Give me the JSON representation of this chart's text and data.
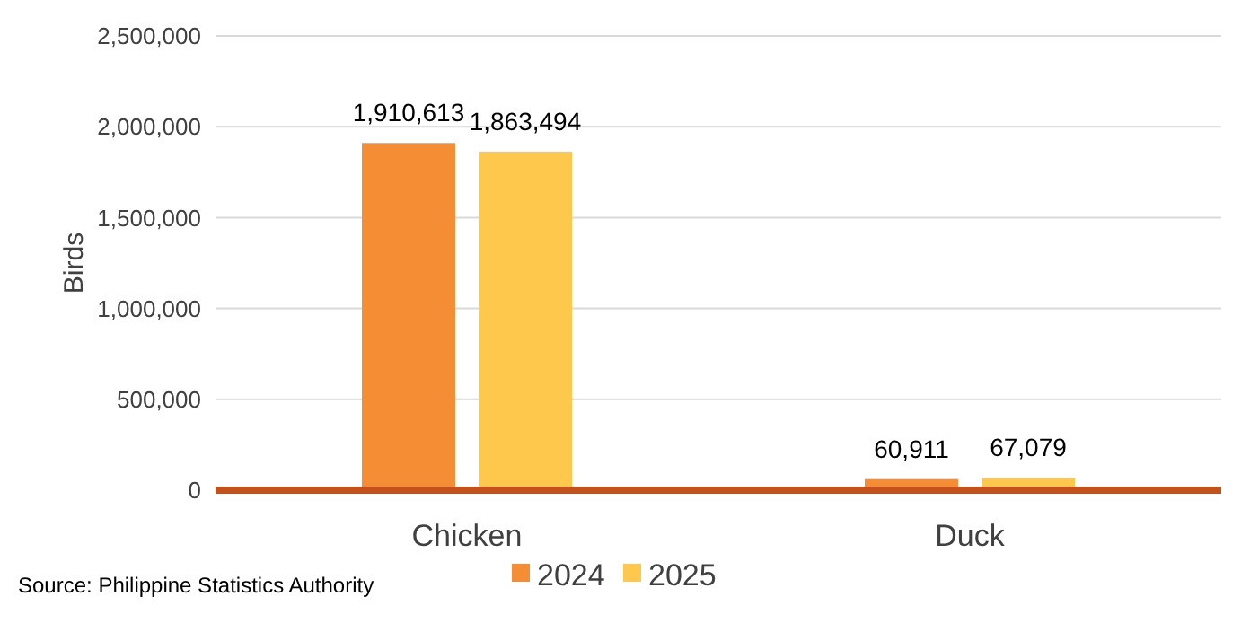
{
  "chart_data": {
    "type": "bar",
    "ylabel": "Birds",
    "categories": [
      "Chicken",
      "Duck"
    ],
    "series": [
      {
        "name": "2024",
        "color": "#f58d34",
        "values": [
          1910613,
          60911
        ],
        "value_labels": [
          "1,910,613",
          "60,911"
        ]
      },
      {
        "name": "2025",
        "color": "#fec84d",
        "values": [
          1863494,
          67079
        ],
        "value_labels": [
          "1,863,494",
          "67,079"
        ]
      }
    ],
    "ylim": [
      0,
      2500000
    ],
    "yticks": [
      {
        "value": 0,
        "label": "0"
      },
      {
        "value": 500000,
        "label": "500,000"
      },
      {
        "value": 1000000,
        "label": "1,000,000"
      },
      {
        "value": 1500000,
        "label": "1,500,000"
      },
      {
        "value": 2000000,
        "label": "2,000,000"
      },
      {
        "value": 2500000,
        "label": "2,500,000"
      }
    ],
    "grid": "y",
    "legend": "bottom",
    "annotations": [
      "Source: Philippine Statistics Authority"
    ]
  }
}
